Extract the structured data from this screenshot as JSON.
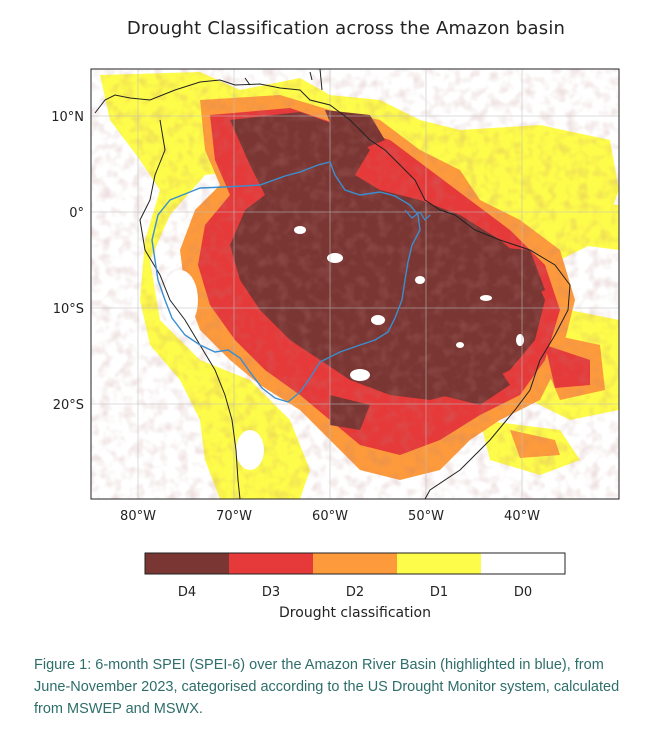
{
  "figure": {
    "title": "Drought Classification across the Amazon basin",
    "caption": "Figure 1: 6-month SPEI (SPEI-6) over the Amazon River Basin (highlighted in blue), from June-November 2023, categorised according to the US Drought Monitor system, calculated from MSWEP and MSWX."
  },
  "map": {
    "lon_ticks": [
      {
        "value": -80,
        "label": "80°W"
      },
      {
        "value": -70,
        "label": "70°W"
      },
      {
        "value": -60,
        "label": "60°W"
      },
      {
        "value": -50,
        "label": "50°W"
      },
      {
        "value": -40,
        "label": "40°W"
      }
    ],
    "lat_ticks": [
      {
        "value": 10,
        "label": "10°N"
      },
      {
        "value": 0,
        "label": "0°"
      },
      {
        "value": -10,
        "label": "10°S"
      },
      {
        "value": -20,
        "label": "20°S"
      }
    ],
    "basin_outline_color": "#3a8fd0",
    "coastline_color": "#222222"
  },
  "legend": {
    "title": "Drought classification",
    "classes": [
      {
        "label": "D4",
        "color": "#7a3633"
      },
      {
        "label": "D3",
        "color": "#e63a3a"
      },
      {
        "label": "D2",
        "color": "#fd9a3c"
      },
      {
        "label": "D1",
        "color": "#fefc4a"
      },
      {
        "label": "D0",
        "color": "#ffffff"
      }
    ]
  }
}
